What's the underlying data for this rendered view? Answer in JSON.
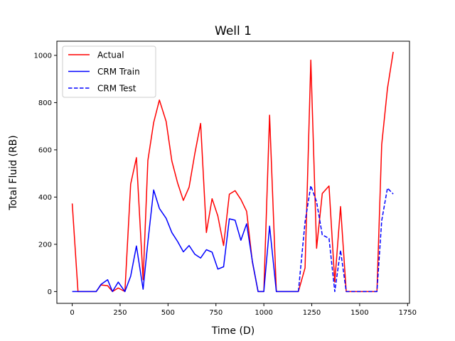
{
  "chart_data": {
    "type": "line",
    "title": "Well 1",
    "xlabel": "Time (D)",
    "ylabel": "Total Fluid (RB)",
    "xlim": [
      -80,
      1760
    ],
    "ylim": [
      -50,
      1060
    ],
    "xticks": [
      0,
      250,
      500,
      750,
      1000,
      1250,
      1500,
      1750
    ],
    "yticks": [
      0,
      200,
      400,
      600,
      800,
      1000
    ],
    "grid": false,
    "legend_position": "top-left",
    "series": [
      {
        "name": "Actual",
        "color": "#ff0000",
        "style": "solid",
        "x": [
          0,
          30,
          60,
          95,
          125,
          150,
          185,
          210,
          240,
          275,
          305,
          335,
          370,
          395,
          425,
          455,
          490,
          520,
          550,
          580,
          610,
          640,
          670,
          700,
          730,
          760,
          790,
          820,
          850,
          880,
          910,
          940,
          970,
          1000,
          1030,
          1065,
          1095,
          1125,
          1150,
          1180,
          1215,
          1245,
          1275,
          1305,
          1340,
          1370,
          1400,
          1430,
          1460,
          1490,
          1520,
          1555,
          1590,
          1615,
          1645,
          1675
        ],
        "y": [
          373,
          0,
          0,
          0,
          0,
          28,
          25,
          0,
          15,
          0,
          455,
          567,
          50,
          555,
          715,
          811,
          720,
          553,
          460,
          386,
          442,
          585,
          712,
          250,
          393,
          320,
          195,
          412,
          427,
          390,
          340,
          125,
          0,
          0,
          747,
          0,
          0,
          0,
          0,
          0,
          100,
          980,
          183,
          415,
          447,
          40,
          360,
          0,
          0,
          0,
          0,
          0,
          0,
          622,
          860,
          1015
        ]
      },
      {
        "name": "CRM Train",
        "color": "#0000ff",
        "style": "solid",
        "x": [
          0,
          30,
          60,
          95,
          125,
          150,
          185,
          210,
          240,
          275,
          305,
          335,
          370,
          395,
          425,
          455,
          490,
          520,
          550,
          580,
          610,
          640,
          670,
          700,
          730,
          760,
          790,
          820,
          850,
          880,
          910,
          940,
          970,
          1000,
          1030,
          1065,
          1095,
          1125,
          1150,
          1180
        ],
        "y": [
          0,
          0,
          0,
          0,
          0,
          30,
          50,
          0,
          40,
          0,
          65,
          193,
          10,
          210,
          430,
          352,
          310,
          250,
          212,
          168,
          195,
          158,
          142,
          177,
          167,
          95,
          105,
          308,
          302,
          217,
          287,
          128,
          0,
          0,
          277,
          0,
          0,
          0,
          0,
          0
        ]
      },
      {
        "name": "CRM Test",
        "color": "#0000ff",
        "style": "dashed",
        "x": [
          1180,
          1215,
          1245,
          1275,
          1305,
          1340,
          1370,
          1400,
          1430,
          1460,
          1490,
          1520,
          1555,
          1590,
          1615,
          1645,
          1675
        ],
        "y": [
          0,
          295,
          448,
          380,
          240,
          225,
          0,
          175,
          0,
          0,
          0,
          0,
          0,
          0,
          300,
          438,
          413
        ]
      }
    ]
  }
}
